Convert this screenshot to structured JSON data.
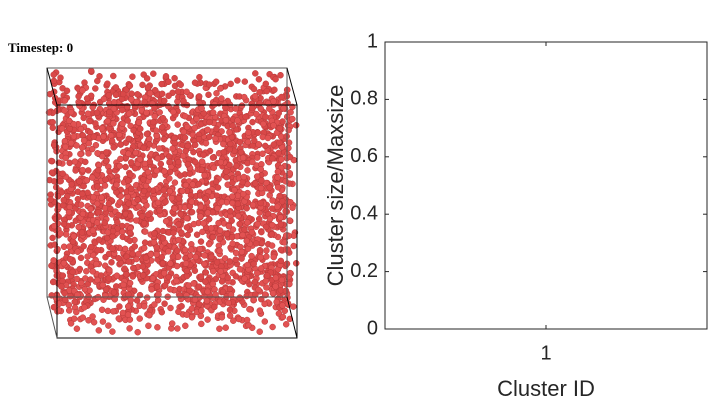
{
  "scene": {
    "label": "Timestep: 0"
  },
  "chart_data": {
    "type": "bar",
    "x": [],
    "values": [],
    "xlabel": "Cluster ID",
    "ylabel": "Cluster size/Maxsize",
    "xlim": [
      0.5,
      1.5
    ],
    "xticks": [
      1
    ],
    "ylim": [
      0,
      1
    ],
    "yticks": [
      0,
      0.2,
      0.4,
      0.6,
      0.8,
      1
    ],
    "color": "#0072bd",
    "grid": false
  }
}
